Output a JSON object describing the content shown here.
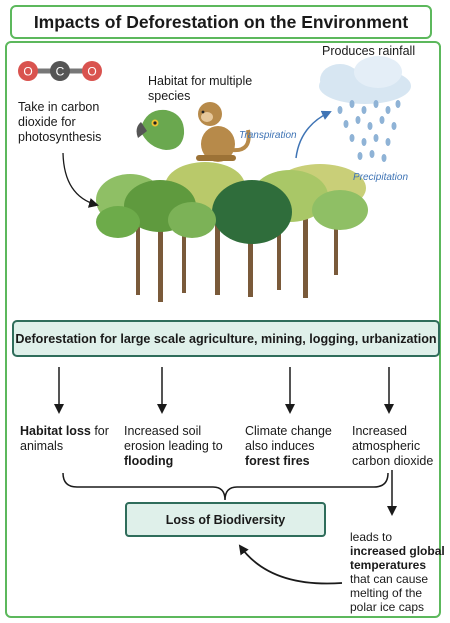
{
  "title": "Impacts of Deforestation on the Environment",
  "top": {
    "co2_molecule": {
      "left_atom": "O",
      "center_atom": "C",
      "right_atom": "O"
    },
    "carbon": [
      "Take in carbon",
      "dioxide for",
      "photosynthesis"
    ],
    "habitat": [
      "Habitat for multiple",
      "species"
    ],
    "rainfall": "Produces rainfall",
    "transpiration": "Transpiration",
    "precipitation": "Precipitation"
  },
  "banner": "Deforestation for large scale agriculture, mining, logging, urbanization",
  "effects": {
    "habitat_bold": "Habitat loss",
    "habitat_rest": " for",
    "habitat_line2": "animals",
    "erosion_line1": "Increased soil",
    "erosion_line2": "erosion leading to",
    "erosion_bold": "flooding",
    "climate_line1": "Climate change",
    "climate_line2": "also induces",
    "climate_bold": "forest fires",
    "carbon_line1": "Increased",
    "carbon_line2": "atmospheric",
    "carbon_line3": "carbon dioxide"
  },
  "loss": "Loss of Biodiversity",
  "temperature": {
    "line1": "leads to",
    "bold1": "increased global",
    "bold2": "temperatures",
    "line4": "that can cause",
    "line5": "melting of the",
    "line6": "polar ice caps"
  },
  "colors": {
    "frame_green": "#5cb85c",
    "box_fill": "#dff0ea",
    "box_border": "#2f6d5b",
    "italic_blue": "#3f74b5",
    "oxygen_red": "#d9534f",
    "carbon_gray": "#555555"
  },
  "icons": [
    "co2-molecule-icon",
    "parrot-icon",
    "monkey-icon",
    "rain-cloud-icon",
    "forest-icon"
  ]
}
